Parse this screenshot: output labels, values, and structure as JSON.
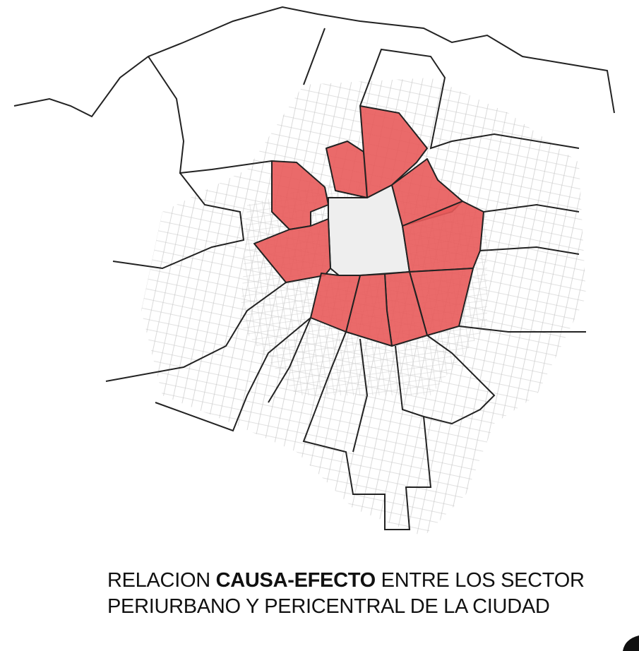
{
  "caption": {
    "line1": {
      "before": "RELACION ",
      "bold": "CAUSA-EFECTO",
      "after": " ENTRE LOS SECTOR"
    },
    "line2": "PERIURBANO Y PERICENTRAL DE LA CIUDAD"
  }
}
